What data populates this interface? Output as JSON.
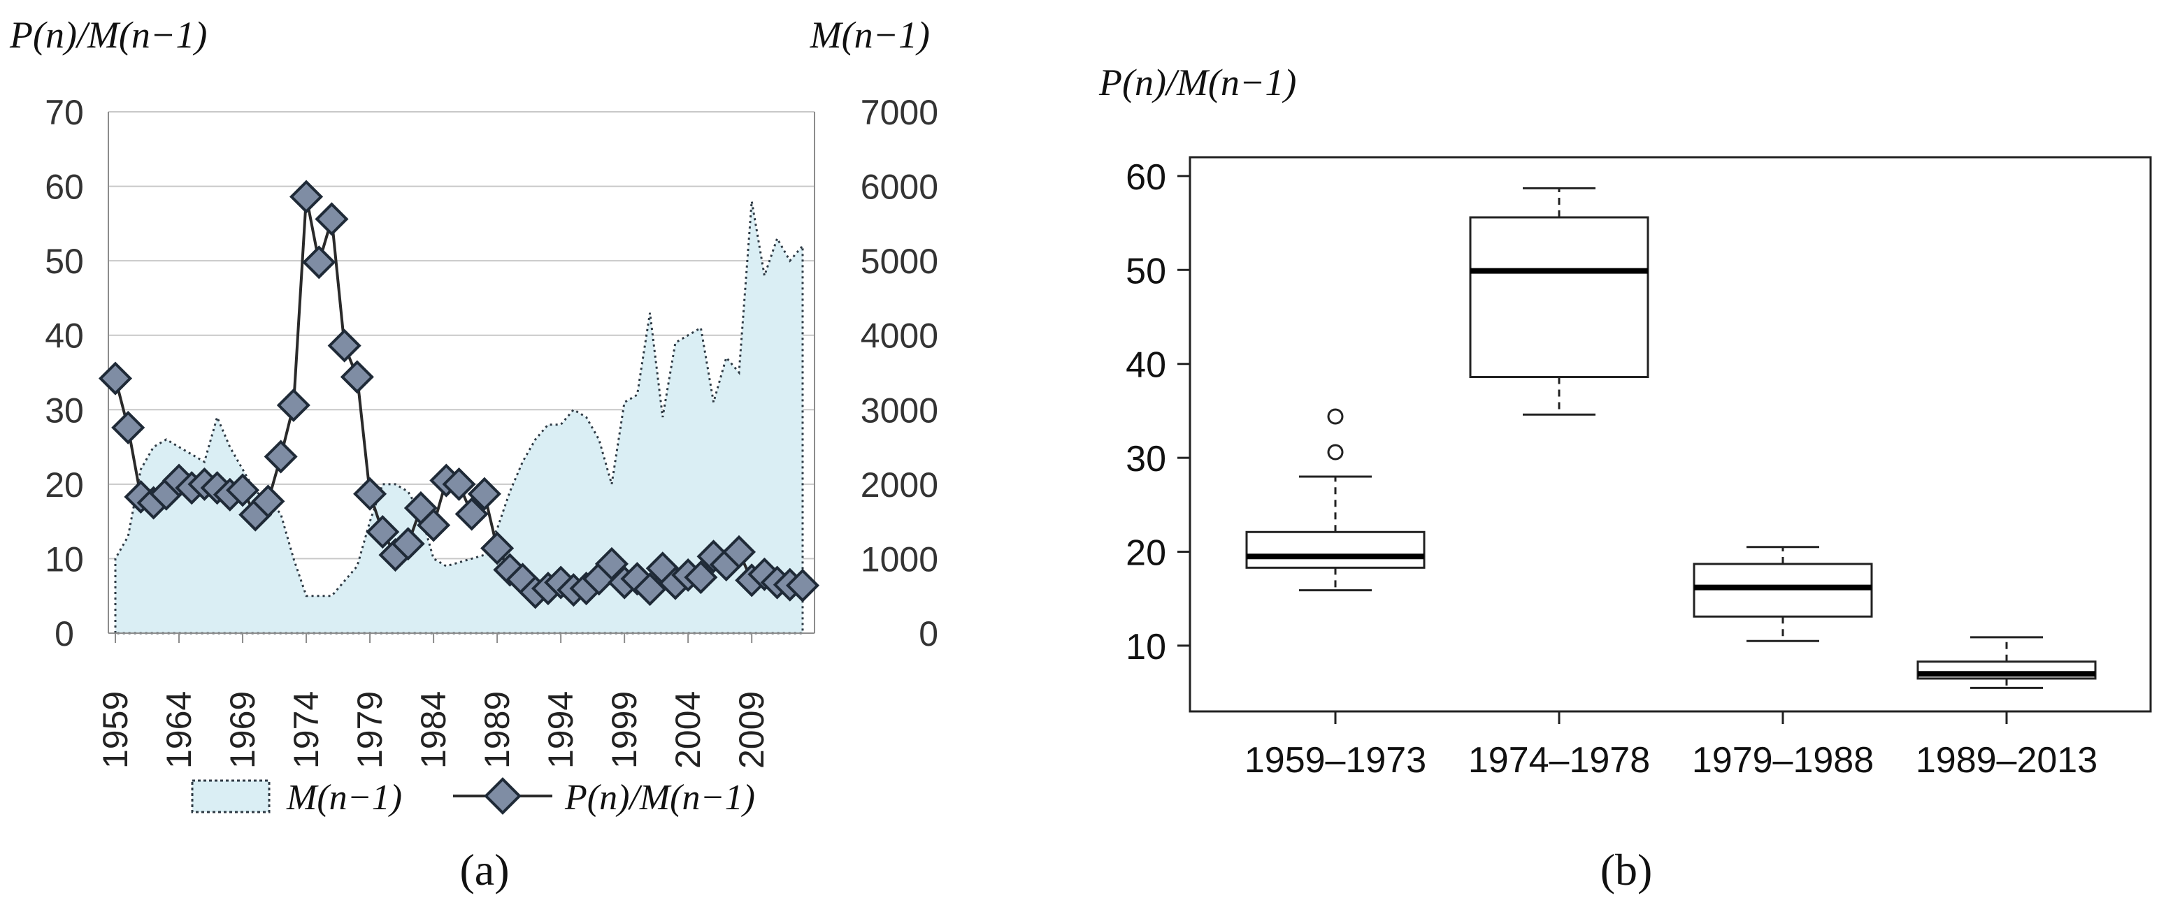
{
  "chart_data": [
    {
      "panel": "(a)",
      "type": "line",
      "left_axis_title": "P(n)/M(n−1)",
      "right_axis_title": "M(n−1)",
      "left_ylim": [
        0,
        70
      ],
      "left_yticks": [
        "0",
        "10",
        "20",
        "30",
        "40",
        "50",
        "60",
        "70"
      ],
      "right_ylim": [
        0,
        7000
      ],
      "right_yticks": [
        "0",
        "1000",
        "2000",
        "3000",
        "4000",
        "5000",
        "6000",
        "7000"
      ],
      "x_tick_labels": [
        "1959",
        "1964",
        "1969",
        "1974",
        "1979",
        "1984",
        "1989",
        "1994",
        "1999",
        "2004",
        "2009"
      ],
      "grid": true,
      "legend": {
        "placement": "bottom",
        "area_label": "M(n−1)",
        "line_label": "P(n)/M(n−1)"
      },
      "colors": {
        "area_fill": "#daeef4",
        "area_edge": "#2e3a44",
        "marker_fill": "#7f8da4",
        "marker_edge": "#1f2a37",
        "line": "#2a2a2a",
        "grid": "#c8c8c8"
      },
      "years": [
        1959,
        1960,
        1961,
        1962,
        1963,
        1964,
        1965,
        1966,
        1967,
        1968,
        1969,
        1970,
        1971,
        1972,
        1973,
        1974,
        1975,
        1976,
        1977,
        1978,
        1979,
        1980,
        1981,
        1982,
        1983,
        1984,
        1985,
        1986,
        1987,
        1988,
        1989,
        1990,
        1991,
        1992,
        1993,
        1994,
        1995,
        1996,
        1997,
        1998,
        1999,
        2000,
        2001,
        2002,
        2003,
        2004,
        2005,
        2006,
        2007,
        2008,
        2009,
        2010,
        2011,
        2012,
        2013
      ],
      "series": [
        {
          "name": "M(n−1)",
          "kind": "area",
          "axis": "right",
          "values": [
            1000,
            1300,
            2200,
            2500,
            2600,
            2500,
            2400,
            2300,
            2900,
            2500,
            2200,
            1900,
            1800,
            1600,
            1000,
            500,
            500,
            500,
            700,
            900,
            1500,
            2000,
            2000,
            1900,
            1600,
            1000,
            900,
            950,
            1000,
            1050,
            1400,
            1900,
            2300,
            2600,
            2800,
            2800,
            3000,
            2900,
            2600,
            2000,
            3100,
            3200,
            4300,
            2900,
            3900,
            4000,
            4100,
            3100,
            3700,
            3500,
            5800,
            4800,
            5300,
            5000,
            5200
          ]
        },
        {
          "name": "P(n)/M(n−1)",
          "kind": "line",
          "axis": "left",
          "values": [
            34.2,
            27.6,
            18.3,
            17.5,
            18.7,
            20.5,
            19.5,
            20.0,
            19.5,
            18.6,
            19.2,
            15.9,
            17.7,
            23.7,
            30.6,
            58.6,
            49.8,
            55.6,
            38.6,
            34.4,
            18.7,
            13.6,
            10.5,
            12.0,
            16.8,
            14.5,
            20.5,
            20.0,
            16.0,
            18.7,
            11.4,
            8.5,
            7.2,
            5.5,
            6.0,
            6.8,
            5.8,
            6.0,
            7.3,
            9.3,
            6.8,
            7.3,
            5.9,
            8.7,
            6.7,
            7.8,
            7.5,
            10.3,
            9.2,
            10.9,
            7.1,
            7.9,
            6.8,
            6.5,
            6.4
          ]
        }
      ]
    },
    {
      "panel": "(b)",
      "type": "box",
      "ylabel": "P(n)/M(n−1)",
      "ylim": [
        3,
        62
      ],
      "yticks": [
        "10",
        "20",
        "30",
        "40",
        "50",
        "60"
      ],
      "categories": [
        "1959–1973",
        "1974–1978",
        "1979–1988",
        "1989–2013"
      ],
      "boxes": [
        {
          "whisker_low": 15.9,
          "q1": 18.3,
          "median": 19.5,
          "q3": 22.1,
          "whisker_high": 28.0,
          "outliers": [
            30.6,
            34.4
          ]
        },
        {
          "whisker_low": 34.6,
          "q1": 38.6,
          "median": 49.9,
          "q3": 55.6,
          "whisker_high": 58.7,
          "outliers": []
        },
        {
          "whisker_low": 10.5,
          "q1": 13.1,
          "median": 16.2,
          "q3": 18.7,
          "whisker_high": 20.5,
          "outliers": []
        },
        {
          "whisker_low": 5.5,
          "q1": 6.5,
          "median": 7.0,
          "q3": 8.3,
          "whisker_high": 10.9,
          "outliers": []
        }
      ]
    }
  ],
  "captions": {
    "a": "(a)",
    "b": "(b)"
  }
}
